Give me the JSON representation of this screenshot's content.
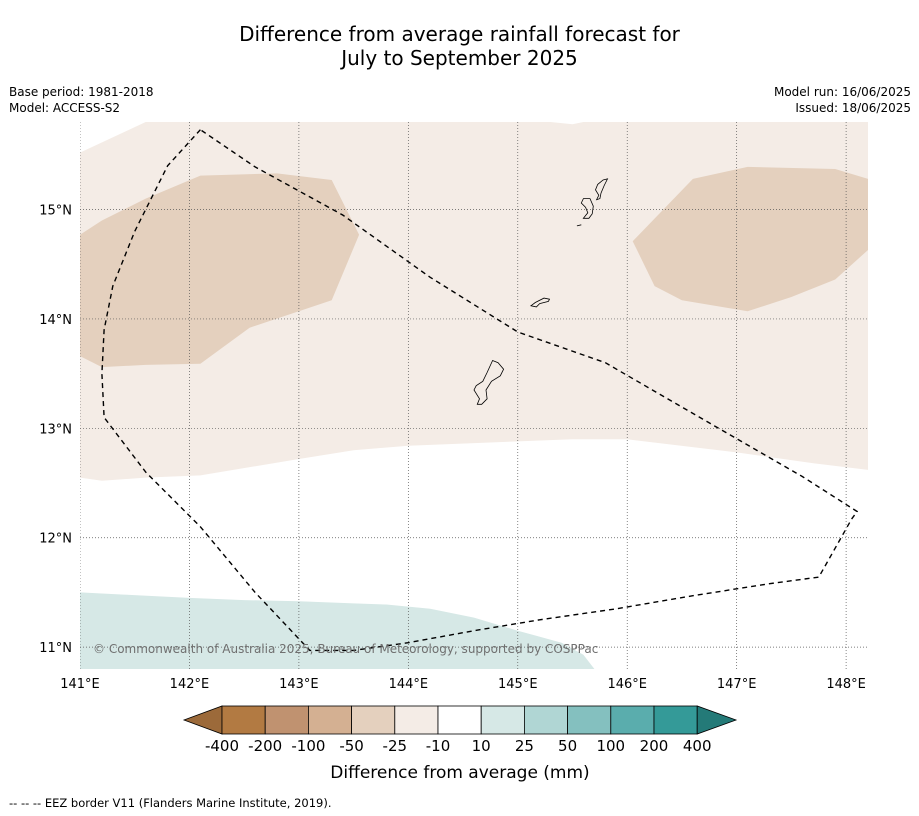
{
  "chart_data": {
    "type": "heatmap",
    "title_line1": "Difference from average rainfall forecast for",
    "title_line2": "July to September 2025",
    "base_period": "Base period: 1981-2018",
    "model": "Model: ACCESS-S2",
    "model_run": "Model run: 16/06/2025",
    "issued": "Issued: 18/06/2025",
    "xlim": [
      141.0,
      148.2
    ],
    "ylim": [
      10.8,
      15.8
    ],
    "x_ticks": [
      141,
      142,
      143,
      144,
      145,
      146,
      147,
      148
    ],
    "x_tick_labels": [
      "141°E",
      "142°E",
      "143°E",
      "144°E",
      "145°E",
      "146°E",
      "147°E",
      "148°E"
    ],
    "y_ticks": [
      11,
      12,
      13,
      14,
      15
    ],
    "y_tick_labels": [
      "11°N",
      "12°N",
      "13°N",
      "14°N",
      "15°N"
    ],
    "grid": true,
    "copyright": "© Commonwealth of Australia 2025, Bureau of Meteorology, supported by COSPPac",
    "colorbar": {
      "label": "Difference from average (mm)",
      "tick_labels": [
        "-400",
        "-200",
        "-100",
        "-50",
        "-25",
        "-10",
        "10",
        "25",
        "50",
        "100",
        "200",
        "400"
      ],
      "colors": [
        "#9c6a3a",
        "#b27a42",
        "#c09270",
        "#d4b092",
        "#e4d0be",
        "#f4ece6",
        "#ffffff",
        "#d6e8e6",
        "#b0d6d4",
        "#84c0bf",
        "#5aadad",
        "#349a98",
        "#247a78"
      ]
    },
    "regions": [
      {
        "category": "-10 to 10",
        "color": "#f4ece6",
        "polygon": [
          [
            141.0,
            15.52
          ],
          [
            141.6,
            15.8
          ],
          [
            145.3,
            15.8
          ],
          [
            145.5,
            15.78
          ],
          [
            145.6,
            15.8
          ],
          [
            148.2,
            15.8
          ],
          [
            148.2,
            12.62
          ],
          [
            147.7,
            12.68
          ],
          [
            147.0,
            12.78
          ],
          [
            146.0,
            12.9
          ],
          [
            145.5,
            12.9
          ],
          [
            145.0,
            12.88
          ],
          [
            144.0,
            12.84
          ],
          [
            143.5,
            12.8
          ],
          [
            143.0,
            12.72
          ],
          [
            142.1,
            12.57
          ],
          [
            141.6,
            12.55
          ],
          [
            141.2,
            12.52
          ],
          [
            141.0,
            12.55
          ]
        ]
      },
      {
        "category": "-50 to -25",
        "color": "#e4d0be",
        "polygon": [
          [
            141.0,
            14.77
          ],
          [
            141.2,
            14.9
          ],
          [
            141.6,
            15.1
          ],
          [
            142.1,
            15.31
          ],
          [
            142.8,
            15.33
          ],
          [
            143.3,
            15.27
          ],
          [
            143.55,
            14.77
          ],
          [
            143.3,
            14.17
          ],
          [
            142.55,
            13.92
          ],
          [
            142.1,
            13.59
          ],
          [
            141.6,
            13.58
          ],
          [
            141.2,
            13.56
          ],
          [
            141.0,
            13.66
          ]
        ]
      },
      {
        "category": "-50 to -25",
        "color": "#e4d0be",
        "polygon": [
          [
            146.05,
            14.71
          ],
          [
            146.6,
            15.28
          ],
          [
            147.1,
            15.39
          ],
          [
            147.9,
            15.37
          ],
          [
            148.2,
            15.28
          ],
          [
            148.2,
            14.63
          ],
          [
            147.9,
            14.36
          ],
          [
            147.5,
            14.2
          ],
          [
            147.1,
            14.07
          ],
          [
            146.5,
            14.17
          ],
          [
            146.25,
            14.3
          ]
        ]
      },
      {
        "category": "10 to 25",
        "color": "#d6e8e6",
        "polygon": [
          [
            141.0,
            11.5
          ],
          [
            141.4,
            11.48
          ],
          [
            142.0,
            11.45
          ],
          [
            142.5,
            11.43
          ],
          [
            143.0,
            11.42
          ],
          [
            143.5,
            11.4
          ],
          [
            143.8,
            11.39
          ],
          [
            144.2,
            11.35
          ],
          [
            144.6,
            11.27
          ],
          [
            145.0,
            11.15
          ],
          [
            145.4,
            11.04
          ],
          [
            145.6,
            10.93
          ],
          [
            145.7,
            10.8
          ],
          [
            141.0,
            10.8
          ]
        ]
      }
    ],
    "islands": [
      {
        "name": "",
        "polygon": [
          [
            144.63,
            13.22
          ],
          [
            144.65,
            13.27
          ],
          [
            144.6,
            13.35
          ],
          [
            144.62,
            13.39
          ],
          [
            144.68,
            13.43
          ],
          [
            144.72,
            13.51
          ],
          [
            144.77,
            13.62
          ],
          [
            144.82,
            13.6
          ],
          [
            144.87,
            13.54
          ],
          [
            144.84,
            13.48
          ],
          [
            144.76,
            13.43
          ],
          [
            144.71,
            13.35
          ],
          [
            144.72,
            13.27
          ],
          [
            144.67,
            13.22
          ]
        ]
      },
      {
        "name": "",
        "polygon": [
          [
            145.12,
            14.12
          ],
          [
            145.16,
            14.15
          ],
          [
            145.24,
            14.19
          ],
          [
            145.29,
            14.18
          ],
          [
            145.28,
            14.16
          ],
          [
            145.2,
            14.14
          ],
          [
            145.17,
            14.11
          ]
        ]
      },
      {
        "name": "",
        "polygon": [
          [
            145.6,
            14.92
          ],
          [
            145.64,
            14.97
          ],
          [
            145.62,
            15.02
          ],
          [
            145.58,
            15.06
          ],
          [
            145.6,
            15.1
          ],
          [
            145.66,
            15.1
          ],
          [
            145.69,
            15.03
          ],
          [
            145.68,
            14.96
          ],
          [
            145.65,
            14.92
          ]
        ]
      },
      {
        "name": "",
        "polygon": [
          [
            145.72,
            15.09
          ],
          [
            145.74,
            15.13
          ],
          [
            145.71,
            15.18
          ],
          [
            145.73,
            15.23
          ],
          [
            145.78,
            15.27
          ],
          [
            145.82,
            15.28
          ],
          [
            145.79,
            15.22
          ],
          [
            145.76,
            15.15
          ],
          [
            145.75,
            15.1
          ]
        ]
      },
      {
        "name": "",
        "polygon": [
          [
            145.54,
            14.85
          ],
          [
            145.58,
            14.86
          ]
        ]
      }
    ],
    "eez_border": [
      [
        142.1,
        15.73
      ],
      [
        141.8,
        15.4
      ],
      [
        141.5,
        14.8
      ],
      [
        141.3,
        14.3
      ],
      [
        141.22,
        13.9
      ],
      [
        141.2,
        13.5
      ],
      [
        141.22,
        13.1
      ],
      [
        141.6,
        12.6
      ],
      [
        142.1,
        12.1
      ],
      [
        142.6,
        11.5
      ],
      [
        143.1,
        10.97
      ],
      [
        143.5,
        10.97
      ],
      [
        144.0,
        11.04
      ],
      [
        144.6,
        11.15
      ],
      [
        145.2,
        11.25
      ],
      [
        145.9,
        11.35
      ],
      [
        146.6,
        11.47
      ],
      [
        147.3,
        11.58
      ],
      [
        147.75,
        11.64
      ],
      [
        148.05,
        12.17
      ],
      [
        148.1,
        12.24
      ],
      [
        147.6,
        12.56
      ],
      [
        146.8,
        13.02
      ],
      [
        145.8,
        13.6
      ],
      [
        145.0,
        13.88
      ],
      [
        144.2,
        14.38
      ],
      [
        143.4,
        14.95
      ],
      [
        142.6,
        15.39
      ],
      [
        142.1,
        15.73
      ]
    ],
    "footnote": "--  --  -- EEZ border V11 (Flanders Marine Institute, 2019)."
  }
}
